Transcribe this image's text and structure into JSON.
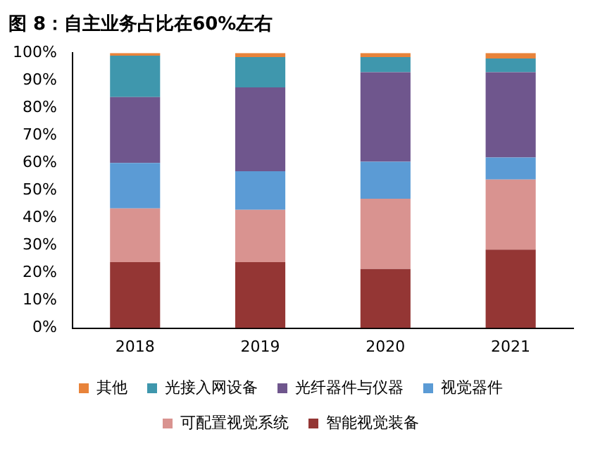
{
  "chart_data": {
    "type": "bar",
    "title": "图 8：自主业务占比在60%左右",
    "stacked": true,
    "categories": [
      "2018",
      "2019",
      "2020",
      "2021"
    ],
    "series": [
      {
        "name": "智能视觉装备",
        "color": "#943634",
        "values": [
          24,
          24,
          21.5,
          28.5
        ]
      },
      {
        "name": "可配置视觉系统",
        "color": "#d99390",
        "values": [
          19.5,
          19,
          25.5,
          25.5
        ]
      },
      {
        "name": "视觉器件",
        "color": "#5b9bd5",
        "values": [
          16.5,
          14,
          13.5,
          8
        ]
      },
      {
        "name": "光纤器件与仪器",
        "color": "#6f568d",
        "values": [
          24,
          30.5,
          32.5,
          31
        ]
      },
      {
        "name": "光接入网设备",
        "color": "#3f97ad",
        "values": [
          15,
          11,
          5.5,
          5
        ]
      },
      {
        "name": "其他",
        "color": "#e8833a",
        "values": [
          1,
          1.5,
          1.5,
          2
        ]
      }
    ],
    "ylim": [
      0,
      100
    ],
    "yticks": [
      {
        "value": 0,
        "label": "0%"
      },
      {
        "value": 10,
        "label": "10%"
      },
      {
        "value": 20,
        "label": "20%"
      },
      {
        "value": 30,
        "label": "30%"
      },
      {
        "value": 40,
        "label": "40%"
      },
      {
        "value": 50,
        "label": "50%"
      },
      {
        "value": 60,
        "label": "60%"
      },
      {
        "value": 70,
        "label": "70%"
      },
      {
        "value": 80,
        "label": "80%"
      },
      {
        "value": 90,
        "label": "90%"
      },
      {
        "value": 100,
        "label": "100%"
      }
    ],
    "grid": false,
    "legend": "bottom"
  }
}
